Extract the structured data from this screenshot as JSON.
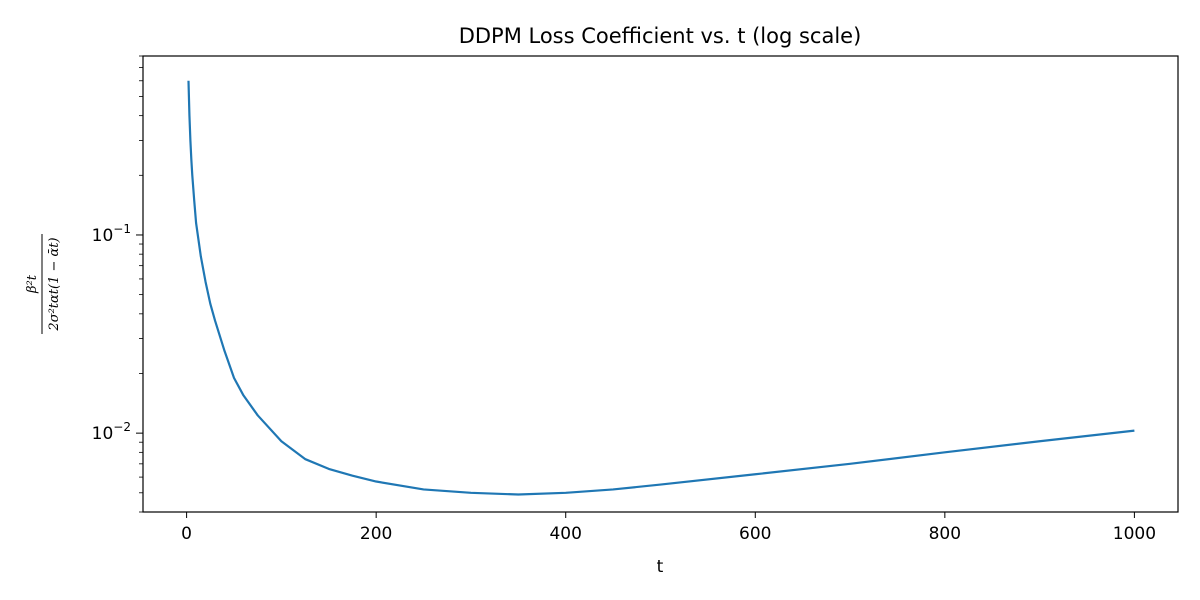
{
  "chart_data": {
    "type": "line",
    "title": "DDPM Loss Coefficient vs. t (log scale)",
    "xlabel": "t",
    "ylabel": {
      "numerator": "β²t",
      "denominator": "2σ²tαt(1 − ᾱt)"
    },
    "xlim": [
      -46,
      1046
    ],
    "ylim": [
      0.004,
      0.8
    ],
    "yscale": "log",
    "grid": false,
    "xticks": [
      0,
      200,
      400,
      600,
      800,
      1000
    ],
    "xtick_labels": [
      "0",
      "200",
      "400",
      "600",
      "800",
      "1000"
    ],
    "yticks": [
      0.01,
      0.1
    ],
    "ytick_labels": [
      "10−2",
      "10−1"
    ],
    "line_color": "#1f77b4",
    "series": [
      {
        "x": [
          2,
          3,
          4,
          5,
          6,
          8,
          10,
          15,
          20,
          25,
          30,
          40,
          50,
          60,
          75,
          100,
          125,
          150,
          175,
          200,
          250,
          300,
          350,
          400,
          450,
          500,
          600,
          700,
          800,
          900,
          1000
        ],
        "y": [
          0.6,
          0.4,
          0.3,
          0.24,
          0.2,
          0.15,
          0.115,
          0.078,
          0.058,
          0.045,
          0.037,
          0.026,
          0.019,
          0.0155,
          0.0123,
          0.0091,
          0.0074,
          0.0066,
          0.0061,
          0.0057,
          0.0052,
          0.005,
          0.0049,
          0.005,
          0.0052,
          0.0055,
          0.0062,
          0.007,
          0.008,
          0.0091,
          0.0103
        ]
      }
    ]
  }
}
